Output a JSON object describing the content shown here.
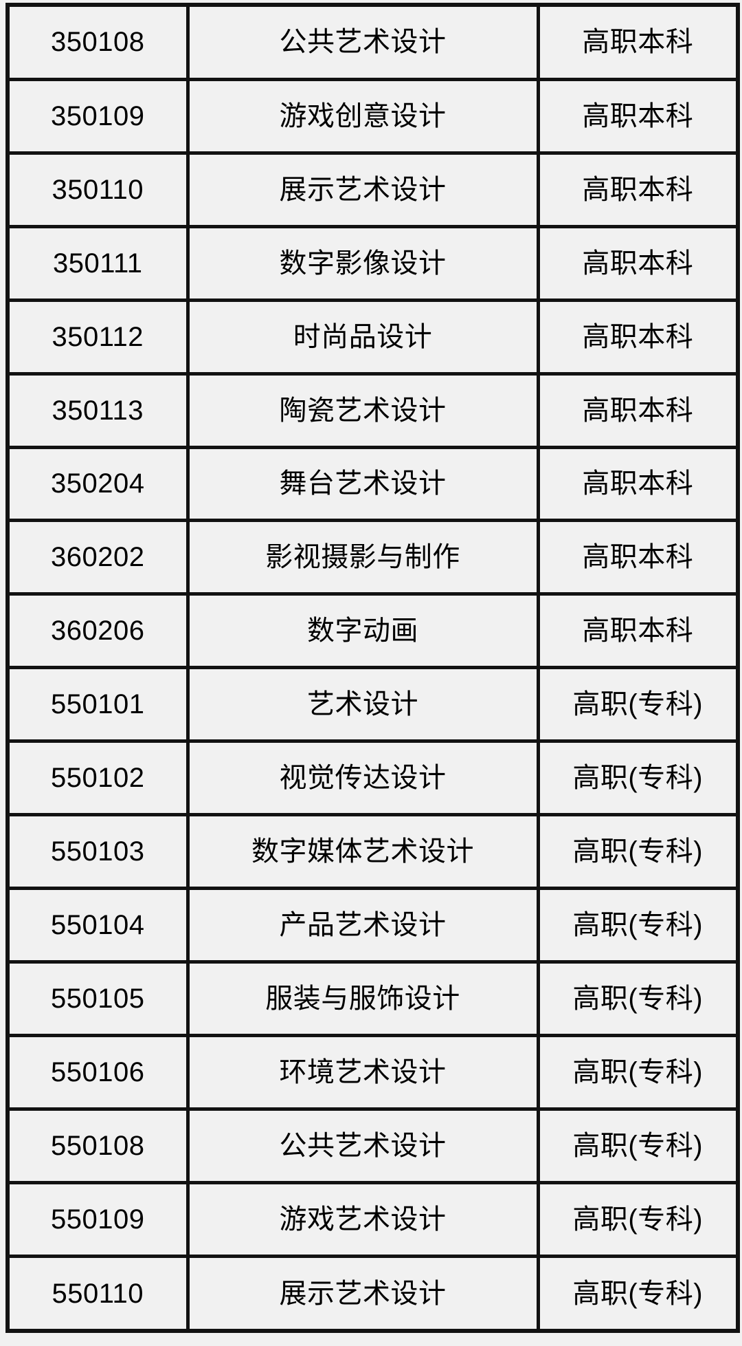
{
  "colors": {
    "background": "#f1f1f1",
    "border": "#121212",
    "text": "#000000"
  },
  "table": {
    "columns": [
      "code",
      "major",
      "level"
    ],
    "level_values": [
      "高职本科",
      "高职(专科)"
    ],
    "rows": [
      {
        "code": "350108",
        "major": "公共艺术设计",
        "level": "高职本科"
      },
      {
        "code": "350109",
        "major": "游戏创意设计",
        "level": "高职本科"
      },
      {
        "code": "350110",
        "major": "展示艺术设计",
        "level": "高职本科"
      },
      {
        "code": "350111",
        "major": "数字影像设计",
        "level": "高职本科"
      },
      {
        "code": "350112",
        "major": "时尚品设计",
        "level": "高职本科"
      },
      {
        "code": "350113",
        "major": "陶瓷艺术设计",
        "level": "高职本科"
      },
      {
        "code": "350204",
        "major": "舞台艺术设计",
        "level": "高职本科"
      },
      {
        "code": "360202",
        "major": "影视摄影与制作",
        "level": "高职本科"
      },
      {
        "code": "360206",
        "major": "数字动画",
        "level": "高职本科"
      },
      {
        "code": "550101",
        "major": "艺术设计",
        "level": "高职(专科)"
      },
      {
        "code": "550102",
        "major": "视觉传达设计",
        "level": "高职(专科)"
      },
      {
        "code": "550103",
        "major": "数字媒体艺术设计",
        "level": "高职(专科)"
      },
      {
        "code": "550104",
        "major": "产品艺术设计",
        "level": "高职(专科)"
      },
      {
        "code": "550105",
        "major": "服装与服饰设计",
        "level": "高职(专科)"
      },
      {
        "code": "550106",
        "major": "环境艺术设计",
        "level": "高职(专科)"
      },
      {
        "code": "550108",
        "major": "公共艺术设计",
        "level": "高职(专科)"
      },
      {
        "code": "550109",
        "major": "游戏艺术设计",
        "level": "高职(专科)"
      },
      {
        "code": "550110",
        "major": "展示艺术设计",
        "level": "高职(专科)"
      }
    ]
  }
}
